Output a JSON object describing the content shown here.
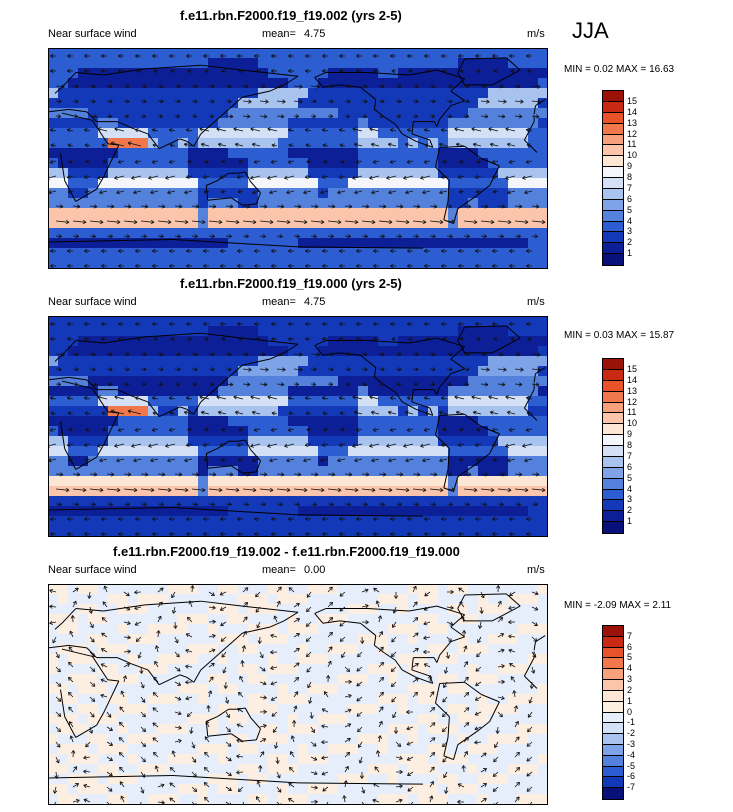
{
  "season": "JJA",
  "panels": [
    {
      "title": "f.e11.rbn.F2000.f19_f19.002 (yrs 2-5)",
      "left_label": "Near surface wind",
      "mean_label": "mean=",
      "mean_value": "4.75",
      "units": "m/s",
      "min_label": "MIN =",
      "min_value": "0.02",
      "max_label": "MAX =",
      "max_value": "16.63",
      "colorbar_labels": [
        "15",
        "14",
        "13",
        "12",
        "11",
        "10",
        "9",
        "8",
        "7",
        "6",
        "5",
        "4",
        "3",
        "2",
        "1"
      ],
      "colorbar_colors": [
        "#9b1208",
        "#c92812",
        "#e9532a",
        "#f0784c",
        "#f6a07c",
        "#fac5aa",
        "#fde6d4",
        "#f4f6fc",
        "#d3e0f6",
        "#a9c3ef",
        "#7ea3e6",
        "#5381dc",
        "#2c5dd1",
        "#1439b8",
        "#0d1f96",
        "#08107a"
      ],
      "field": "wind_speed"
    },
    {
      "title": "f.e11.rbn.F2000.f19_f19.000 (yrs 2-5)",
      "left_label": "Near surface wind",
      "mean_label": "mean=",
      "mean_value": "4.75",
      "units": "m/s",
      "min_label": "MIN =",
      "min_value": "0.03",
      "max_label": "MAX =",
      "max_value": "15.87",
      "colorbar_labels": [
        "15",
        "14",
        "13",
        "12",
        "11",
        "10",
        "9",
        "8",
        "7",
        "6",
        "5",
        "4",
        "3",
        "2",
        "1"
      ],
      "colorbar_colors": [
        "#9b1208",
        "#c92812",
        "#e9532a",
        "#f0784c",
        "#f6a07c",
        "#fac5aa",
        "#fde6d4",
        "#f4f6fc",
        "#d3e0f6",
        "#a9c3ef",
        "#7ea3e6",
        "#5381dc",
        "#2c5dd1",
        "#1439b8",
        "#0d1f96",
        "#08107a"
      ],
      "field": "wind_speed"
    },
    {
      "title": "f.e11.rbn.F2000.f19_f19.002 - f.e11.rbn.F2000.f19_f19.000",
      "left_label": "Near surface wind",
      "mean_label": "mean=",
      "mean_value": "0.00",
      "units": "m/s",
      "min_label": "MIN =",
      "min_value": "-2.09",
      "max_label": "MAX =",
      "max_value": "2.11",
      "colorbar_labels": [
        "7",
        "6",
        "5",
        "4",
        "3",
        "2",
        "1",
        "0",
        "-1",
        "-2",
        "-3",
        "-4",
        "-5",
        "-6",
        "-7"
      ],
      "colorbar_colors": [
        "#9b1208",
        "#c92812",
        "#e9532a",
        "#f0784c",
        "#f6a07c",
        "#fac5aa",
        "#fde6d4",
        "#fdeee2",
        "#e6eefb",
        "#d3e0f6",
        "#a9c3ef",
        "#7ea3e6",
        "#5381dc",
        "#2c5dd1",
        "#1439b8",
        "#08107a"
      ],
      "field": "difference"
    }
  ]
}
